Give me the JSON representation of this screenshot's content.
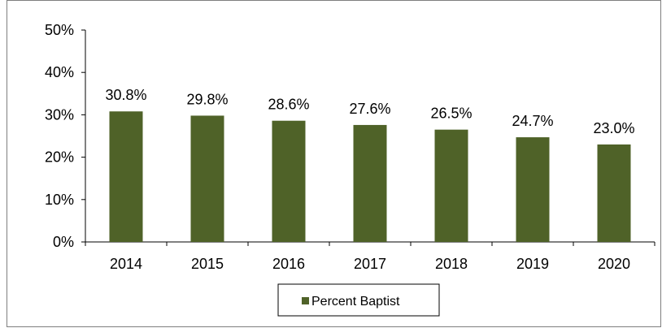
{
  "chart_data": {
    "type": "bar",
    "categories": [
      "2014",
      "2015",
      "2016",
      "2017",
      "2018",
      "2019",
      "2020"
    ],
    "series": [
      {
        "name": "Percent Baptist",
        "values": [
          30.8,
          29.8,
          28.6,
          27.6,
          26.5,
          24.7,
          23.0
        ],
        "data_labels": [
          "30.8%",
          "29.8%",
          "28.6%",
          "27.6%",
          "26.5%",
          "24.7%",
          "23.0%"
        ],
        "color": "#4f6228"
      }
    ],
    "y_ticks": [
      "0%",
      "10%",
      "20%",
      "30%",
      "40%",
      "50%"
    ],
    "ylim": [
      0,
      50
    ],
    "grid": false,
    "legend_position": "bottom",
    "title": "",
    "xlabel": "",
    "ylabel": ""
  }
}
